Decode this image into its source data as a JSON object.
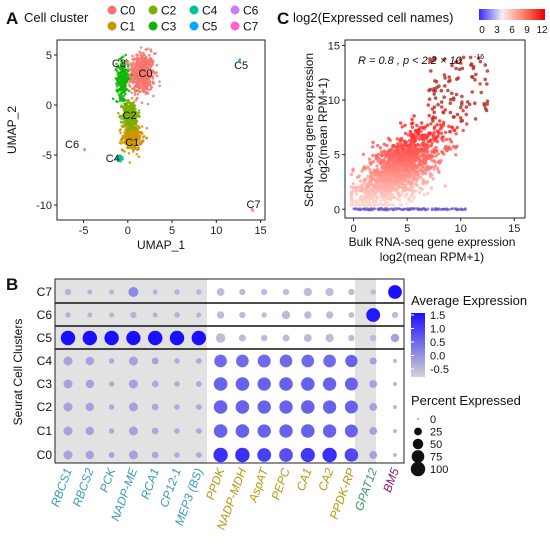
{
  "panels": {
    "A": "A",
    "B": "B",
    "C": "C"
  },
  "chart_data": [
    {
      "id": "A",
      "type": "scatter",
      "title": "",
      "legend_title": "Cell cluster",
      "xlabel": "UMAP_1",
      "ylabel": "UMAP_2",
      "xlim": [
        -8,
        15.5
      ],
      "ylim": [
        -11.5,
        6.5
      ],
      "xticks": [
        -5,
        0,
        5,
        10,
        15
      ],
      "yticks": [
        -10,
        -5,
        0,
        5
      ],
      "legend_placement": "top",
      "clusters": [
        {
          "name": "C0",
          "color": "#f8766d",
          "center": [
            1.6,
            3.1
          ],
          "spread": [
            1.3,
            1.9
          ],
          "n": 520
        },
        {
          "name": "C1",
          "color": "#cd9600",
          "center": [
            0.5,
            -3.2
          ],
          "spread": [
            1.0,
            1.2
          ],
          "n": 330
        },
        {
          "name": "C2",
          "color": "#7cae00",
          "center": [
            0.3,
            -1.0
          ],
          "spread": [
            0.8,
            1.3
          ],
          "n": 290
        },
        {
          "name": "C3",
          "color": "#0cb702",
          "center": [
            -0.6,
            2.6
          ],
          "spread": [
            0.6,
            1.7
          ],
          "n": 220
        },
        {
          "name": "C4",
          "color": "#00c19a",
          "center": [
            -0.9,
            -5.4
          ],
          "spread": [
            0.3,
            0.25
          ],
          "n": 22
        },
        {
          "name": "C5",
          "color": "#00a9ff",
          "center": [
            12.6,
            4.5
          ],
          "spread": [
            0.1,
            0.1
          ],
          "n": 2
        },
        {
          "name": "C6",
          "color": "#c77cff",
          "center": [
            -4.9,
            -4.4
          ],
          "spread": [
            0.1,
            0.1
          ],
          "n": 2
        },
        {
          "name": "C7",
          "color": "#ff61cc",
          "center": [
            14.1,
            -10.5
          ],
          "spread": [
            0.1,
            0.1
          ],
          "n": 2
        }
      ],
      "point_labels": [
        {
          "text": "C3",
          "x": -1.0,
          "y": 3.8
        },
        {
          "text": "C0",
          "x": 2.0,
          "y": 2.8
        },
        {
          "text": "C2",
          "x": 0.2,
          "y": -1.4
        },
        {
          "text": "C1",
          "x": 0.5,
          "y": -4.1
        },
        {
          "text": "C4",
          "x": -1.7,
          "y": -5.7
        },
        {
          "text": "C5",
          "x": 12.8,
          "y": 3.6
        },
        {
          "text": "C6",
          "x": -6.3,
          "y": -4.3
        },
        {
          "text": "C7",
          "x": 14.2,
          "y": -10.3
        }
      ]
    },
    {
      "id": "C",
      "type": "scatter",
      "title": "log2(Expressed cell names)",
      "colorbar_ticks": [
        "0",
        "3",
        "6",
        "9",
        "12"
      ],
      "colorbar_range": [
        0,
        12
      ],
      "xlabel_line1": "Bulk RNA-seq gene expression",
      "xlabel_line2": "log2(mean RPM+1)",
      "ylabel_line1": "ScRNA-seq gene expression",
      "ylabel_line2": "log2(mean RPM+1)",
      "xlim": [
        -0.8,
        16
      ],
      "ylim": [
        -0.8,
        15.5
      ],
      "xticks": [
        0,
        5,
        10,
        15
      ],
      "yticks": [
        0,
        5,
        10,
        15
      ],
      "annotation": "R = 0.8 , p < 2.2 × 10",
      "annotation_exp": "-16",
      "correlation_r": 0.8
    },
    {
      "id": "B",
      "type": "dot",
      "xlabel": "",
      "ylabel": "Seurat Cell Clusters",
      "rows": [
        "C7",
        "C6",
        "C5",
        "C4",
        "C3",
        "C2",
        "C1",
        "C0"
      ],
      "genes": [
        {
          "name": "RBCS1",
          "color": "#3a9ab8"
        },
        {
          "name": "RBCS2",
          "color": "#3a9ab8"
        },
        {
          "name": "PCK",
          "color": "#3a9ab8"
        },
        {
          "name": "NADP-ME",
          "color": "#3a9ab8"
        },
        {
          "name": "RCA1",
          "color": "#3a9ab8"
        },
        {
          "name": "CP12-1",
          "color": "#3a9ab8"
        },
        {
          "name": "MEP3 (BS)",
          "color": "#3a9ab8"
        },
        {
          "name": "PPDK",
          "color": "#b8960c"
        },
        {
          "name": "NADP-MDH",
          "color": "#b8960c"
        },
        {
          "name": "AspAT",
          "color": "#b8960c"
        },
        {
          "name": "PEPC",
          "color": "#b8960c"
        },
        {
          "name": "CA1",
          "color": "#b8960c"
        },
        {
          "name": "CA2",
          "color": "#b8960c"
        },
        {
          "name": "PPDK-RP",
          "color": "#b8960c"
        },
        {
          "name": "GPAT12",
          "color": "#3a9a60"
        },
        {
          "name": "BM5",
          "color": "#8b1a6b"
        }
      ],
      "avg_expression_legend": {
        "title": "Average Expression",
        "ticks": [
          1.5,
          1.0,
          0.5,
          0.0,
          -0.5
        ],
        "range": [
          -0.8,
          1.6
        ]
      },
      "pct_expressed_legend": {
        "title": "Percent Expressed",
        "ticks": [
          0,
          25,
          50,
          75,
          100
        ]
      },
      "avg_expression": [
        [
          -0.4,
          -0.4,
          -0.4,
          0.1,
          -0.4,
          -0.4,
          -0.4,
          -0.5,
          -0.5,
          -0.5,
          -0.5,
          -0.5,
          -0.5,
          -0.5,
          -0.5,
          1.6
        ],
        [
          -0.4,
          -0.4,
          -0.4,
          -0.4,
          -0.4,
          -0.4,
          -0.4,
          -0.5,
          -0.5,
          -0.5,
          -0.5,
          -0.5,
          -0.5,
          -0.5,
          1.5,
          -0.5
        ],
        [
          1.6,
          1.6,
          1.6,
          1.6,
          1.6,
          1.6,
          1.6,
          -0.5,
          -0.5,
          -0.5,
          -0.5,
          -0.5,
          -0.5,
          -0.5,
          -0.5,
          -0.2
        ],
        [
          -0.2,
          -0.2,
          -0.3,
          -0.2,
          -0.2,
          -0.3,
          -0.3,
          0.5,
          0.5,
          0.5,
          0.5,
          0.5,
          0.5,
          0.6,
          -0.2,
          -0.5
        ],
        [
          -0.2,
          -0.2,
          -0.3,
          -0.2,
          -0.3,
          -0.3,
          -0.3,
          0.6,
          0.6,
          0.6,
          0.6,
          0.6,
          0.6,
          0.6,
          -0.2,
          -0.5
        ],
        [
          -0.2,
          -0.2,
          -0.3,
          -0.2,
          -0.3,
          -0.3,
          -0.3,
          0.6,
          0.6,
          0.6,
          0.6,
          0.6,
          0.6,
          0.6,
          -0.2,
          -0.5
        ],
        [
          -0.2,
          -0.2,
          -0.3,
          -0.2,
          -0.3,
          -0.3,
          -0.3,
          0.6,
          0.6,
          0.6,
          0.6,
          0.6,
          0.6,
          0.6,
          -0.2,
          -0.5
        ],
        [
          -0.2,
          -0.2,
          -0.2,
          -0.2,
          -0.3,
          -0.3,
          -0.3,
          1.2,
          1.2,
          1.0,
          0.8,
          1.1,
          1.2,
          0.9,
          -0.2,
          -0.5
        ]
      ],
      "pct_expressed": [
        [
          15,
          8,
          8,
          45,
          8,
          10,
          10,
          25,
          15,
          15,
          15,
          30,
          28,
          15,
          10,
          90
        ],
        [
          10,
          8,
          8,
          15,
          8,
          12,
          8,
          22,
          15,
          10,
          30,
          22,
          22,
          12,
          92,
          15
        ],
        [
          100,
          100,
          100,
          98,
          100,
          100,
          100,
          40,
          20,
          15,
          20,
          25,
          28,
          15,
          15,
          30
        ],
        [
          35,
          30,
          10,
          35,
          18,
          10,
          12,
          75,
          75,
          80,
          75,
          75,
          75,
          70,
          20,
          5
        ],
        [
          35,
          30,
          10,
          35,
          18,
          10,
          12,
          88,
          88,
          85,
          88,
          88,
          85,
          80,
          25,
          5
        ],
        [
          35,
          30,
          10,
          35,
          18,
          10,
          12,
          88,
          88,
          85,
          85,
          88,
          85,
          80,
          25,
          5
        ],
        [
          35,
          30,
          10,
          35,
          18,
          10,
          12,
          88,
          88,
          85,
          85,
          88,
          85,
          80,
          25,
          5
        ],
        [
          35,
          30,
          12,
          35,
          18,
          10,
          12,
          100,
          100,
          92,
          90,
          96,
          100,
          88,
          25,
          5
        ]
      ]
    }
  ]
}
